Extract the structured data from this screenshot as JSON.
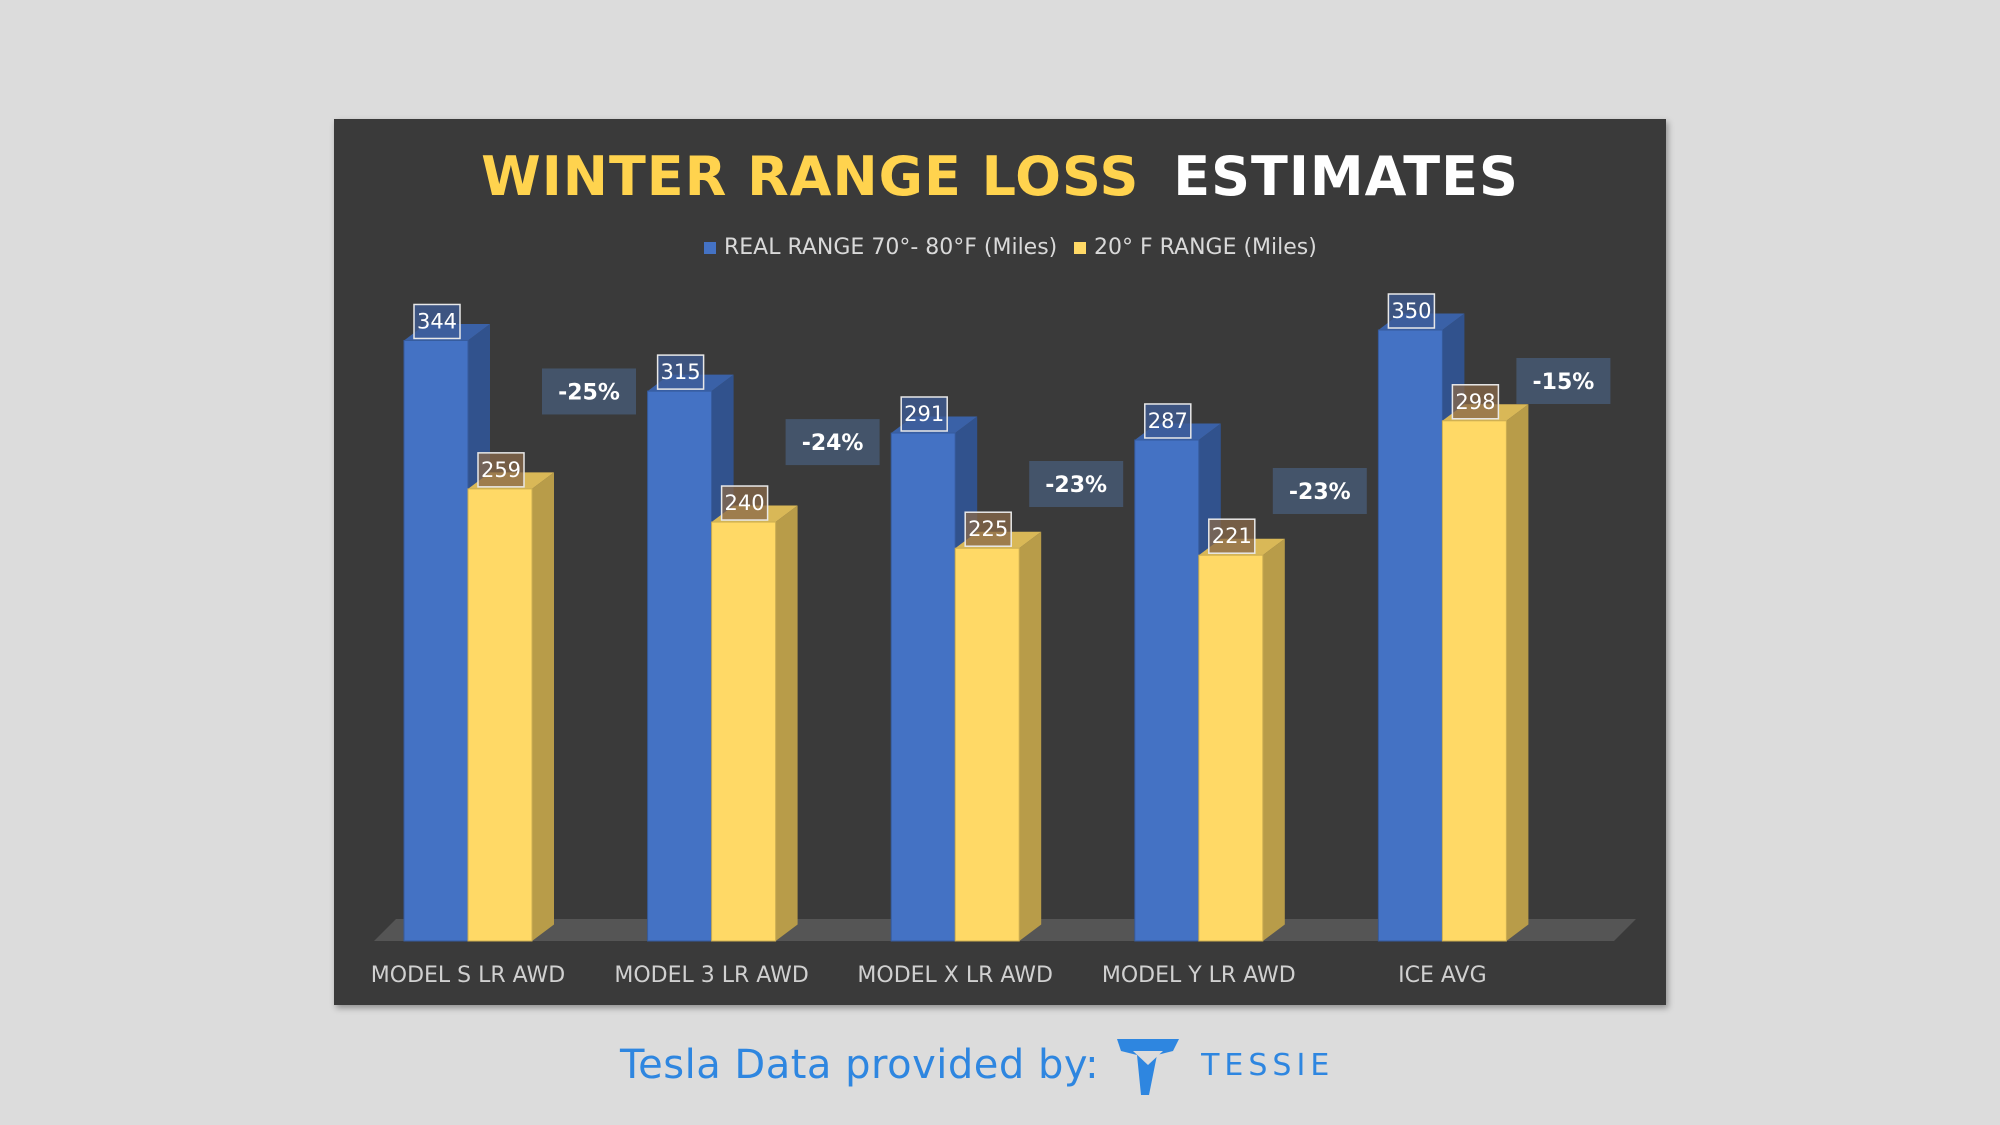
{
  "footer": {
    "label": "Tesla Data provided by:",
    "brand": "TESSIE",
    "brand_color": "#2e86e0"
  },
  "chart_data": {
    "type": "bar",
    "title_part1": "WINTER RANGE LOSS",
    "title_part2": "ESTIMATES",
    "categories": [
      "MODEL S LR AWD",
      "MODEL 3 LR AWD",
      "MODEL X LR AWD",
      "MODEL Y LR AWD",
      "ICE AVG"
    ],
    "series": [
      {
        "name": "REAL RANGE 70°- 80°F (Miles)",
        "values": [
          344,
          315,
          291,
          287,
          350
        ],
        "color": "#4472c4"
      },
      {
        "name": "20° F RANGE (Miles)",
        "values": [
          259,
          240,
          225,
          221,
          298
        ],
        "color": "#ffd966"
      }
    ],
    "annotations": [
      "-25%",
      "-24%",
      "-23%",
      "-23%",
      "-15%"
    ],
    "ylim": [
      0,
      350
    ],
    "legend_position": "top-center",
    "grid": false,
    "colors": {
      "title_accent": "#ffd34e",
      "title_main": "#ffffff",
      "background": "#3a3a3a"
    }
  }
}
